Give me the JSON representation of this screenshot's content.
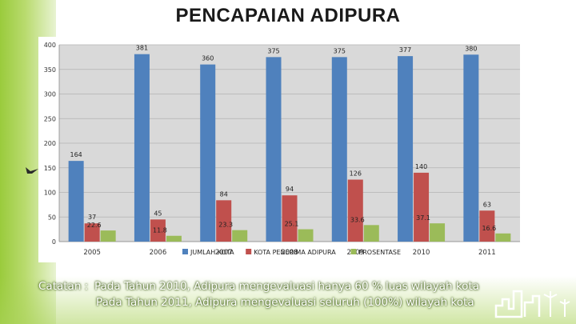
{
  "slide": {
    "title": "PENCAPAIAN ADIPURA",
    "notes": [
      {
        "label": "Catatan :",
        "text": "Pada Tahun 2010, Adipura mengevaluasi hanya 60 % luas wilayah kota"
      },
      {
        "label": "",
        "text": "Pada Tahun 2011, Adipura mengevaluasi seluruh (100%) wilayah kota"
      }
    ]
  },
  "chart_data": {
    "type": "bar",
    "title": "",
    "xlabel": "",
    "ylabel": "",
    "categories": [
      "2005",
      "2006",
      "2007",
      "2008",
      "2009",
      "2010",
      "2011"
    ],
    "series": [
      {
        "name": "JUMLAH KOTA",
        "color": "#4f81bd",
        "values": [
          164,
          381,
          360,
          375,
          375,
          377,
          380
        ]
      },
      {
        "name": "KOTA PENERIMA ADIPURA",
        "color": "#c0504d",
        "values": [
          37,
          45,
          84,
          94,
          126,
          140,
          63
        ]
      },
      {
        "name": "PROSENTASE",
        "color": "#9bbb59",
        "values": [
          22.6,
          11.8,
          23.3,
          25.1,
          33.6,
          37.1,
          16.6
        ]
      }
    ],
    "ylim": [
      0,
      400
    ],
    "yticks": [
      0,
      50,
      100,
      150,
      200,
      250,
      300,
      350,
      400
    ],
    "grid": true,
    "legend": "bottom-center",
    "plot_background": "#d9d9d9"
  }
}
